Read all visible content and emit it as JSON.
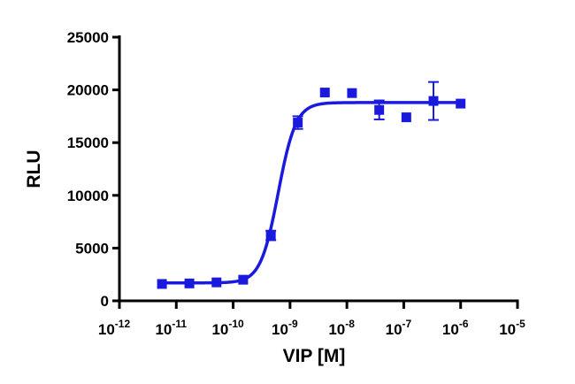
{
  "chart_data": {
    "type": "scatter",
    "title": "",
    "xlabel": "VIP [M]",
    "ylabel": "RLU",
    "xscale": "log",
    "xlim": [
      1e-12,
      1e-05
    ],
    "ylim": [
      0,
      25000
    ],
    "grid": false,
    "legend": "none",
    "color": "#1a1adf",
    "x_ticks": [
      {
        "value": 1e-12,
        "base": "10",
        "exp": "-12"
      },
      {
        "value": 1e-11,
        "base": "10",
        "exp": "-11"
      },
      {
        "value": 1e-10,
        "base": "10",
        "exp": "-10"
      },
      {
        "value": 1e-09,
        "base": "10",
        "exp": "-9"
      },
      {
        "value": 1e-08,
        "base": "10",
        "exp": "-8"
      },
      {
        "value": 1e-07,
        "base": "10",
        "exp": "-7"
      },
      {
        "value": 1e-06,
        "base": "10",
        "exp": "-6"
      },
      {
        "value": 1e-05,
        "base": "10",
        "exp": "-5"
      }
    ],
    "y_ticks": [
      {
        "value": 0,
        "label": "0"
      },
      {
        "value": 5000,
        "label": "5000"
      },
      {
        "value": 10000,
        "label": "10000"
      },
      {
        "value": 15000,
        "label": "15000"
      },
      {
        "value": 20000,
        "label": "20000"
      },
      {
        "value": 25000,
        "label": "25000"
      }
    ],
    "points": [
      {
        "x": 5.6e-12,
        "y": 1600
      },
      {
        "x": 1.7e-11,
        "y": 1650
      },
      {
        "x": 5.1e-11,
        "y": 1750
      },
      {
        "x": 1.5e-10,
        "y": 2000
      },
      {
        "x": 4.6e-10,
        "y": 6200,
        "err": 450
      },
      {
        "x": 1.37e-09,
        "y": 16900,
        "err": 600
      },
      {
        "x": 4.1e-09,
        "y": 19750
      },
      {
        "x": 1.23e-08,
        "y": 19700
      },
      {
        "x": 3.7e-08,
        "y": 18100,
        "err": 900
      },
      {
        "x": 1.11e-07,
        "y": 17400
      },
      {
        "x": 3.33e-07,
        "y": 18950,
        "err": 1800
      },
      {
        "x": 1e-06,
        "y": 18700
      }
    ],
    "fit": {
      "model": "sigmoidal dose-response",
      "bottom": 1700,
      "top": 18800,
      "ec50": 6.2e-10,
      "hill": 2.8,
      "x_start": 5.6e-12,
      "x_end": 1e-06
    }
  }
}
